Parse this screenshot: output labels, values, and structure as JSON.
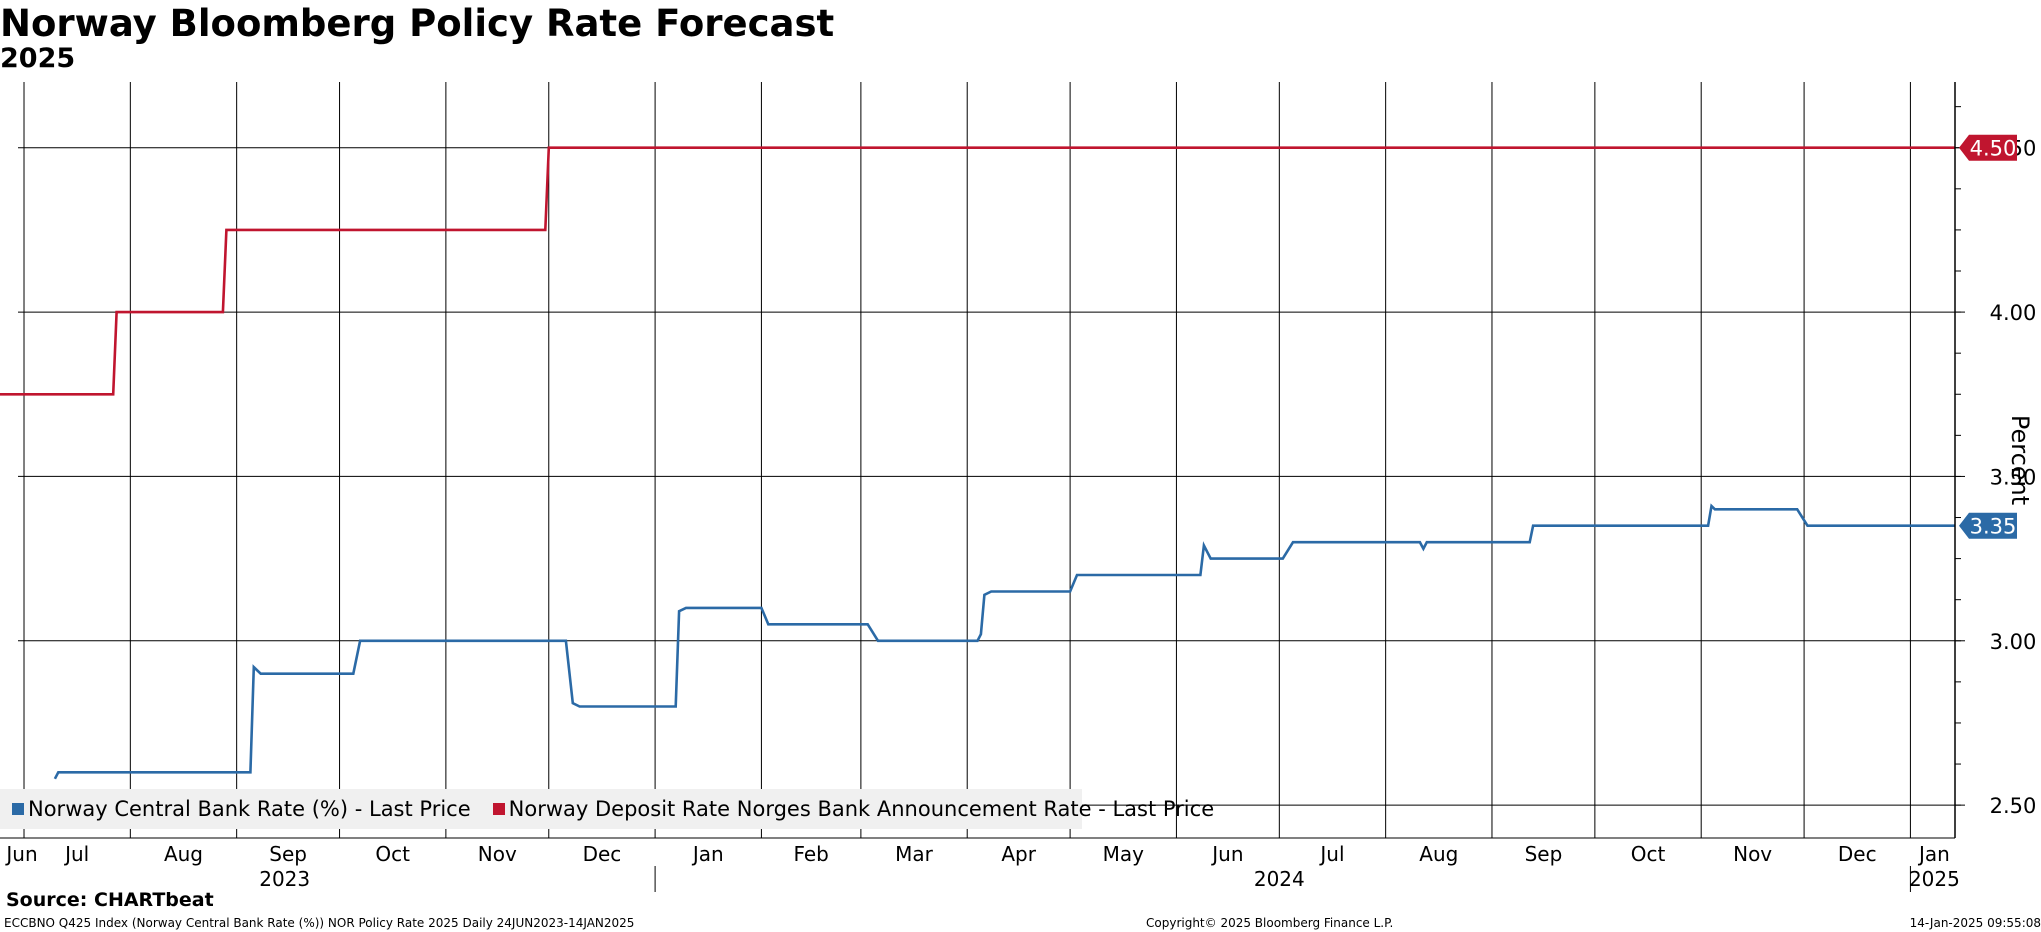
{
  "header": {
    "title": "Norway Bloomberg Policy Rate Forecast",
    "subtitle": "2025"
  },
  "colors": {
    "blue_series": "#2b6aa6",
    "red_series": "#c0152f",
    "grid": "#000000",
    "legend_bg": "#f0f0f0"
  },
  "chart_data": {
    "type": "line",
    "ylabel": "Percent",
    "ylim": [
      2.4,
      4.7
    ],
    "yticks": [
      2.5,
      3.0,
      3.5,
      4.0,
      4.5
    ],
    "ytick_labels": [
      "2.50",
      "3.00",
      "3.50",
      "4.00",
      "4.50"
    ],
    "xlim": [
      "2023-06-24",
      "2025-01-14"
    ],
    "grid": "on",
    "y_axis_side": "right",
    "legend_position": "bottom-left",
    "month_ticks": [
      {
        "label": "Jun",
        "date": "2023-06-24"
      },
      {
        "label": "Jul",
        "date": "2023-07-01"
      },
      {
        "label": "Aug",
        "date": "2023-08-01"
      },
      {
        "label": "Sep",
        "date": "2023-09-01"
      },
      {
        "label": "Oct",
        "date": "2023-10-01"
      },
      {
        "label": "Nov",
        "date": "2023-11-01"
      },
      {
        "label": "Dec",
        "date": "2023-12-01"
      },
      {
        "label": "Jan",
        "date": "2024-01-01"
      },
      {
        "label": "Feb",
        "date": "2024-02-01"
      },
      {
        "label": "Mar",
        "date": "2024-03-01"
      },
      {
        "label": "Apr",
        "date": "2024-04-01"
      },
      {
        "label": "May",
        "date": "2024-05-01"
      },
      {
        "label": "Jun",
        "date": "2024-06-01"
      },
      {
        "label": "Jul",
        "date": "2024-07-01"
      },
      {
        "label": "Aug",
        "date": "2024-08-01"
      },
      {
        "label": "Sep",
        "date": "2024-09-01"
      },
      {
        "label": "Oct",
        "date": "2024-10-01"
      },
      {
        "label": "Nov",
        "date": "2024-11-01"
      },
      {
        "label": "Dec",
        "date": "2024-12-01"
      },
      {
        "label": "Jan",
        "date": "2025-01-01"
      }
    ],
    "year_ticks": [
      {
        "label": "2023",
        "date": "2023-09-15"
      },
      {
        "label": "2024",
        "date": "2024-07-01"
      },
      {
        "label": "2025",
        "date": "2025-01-08"
      }
    ],
    "year_separators": [
      "2024-01-01",
      "2025-01-01"
    ],
    "series": [
      {
        "name": "Norway Central Bank Rate (%) - Last Price",
        "color": "#2b6aa6",
        "last_value": "3.35",
        "points": [
          [
            "2023-07-10",
            2.58
          ],
          [
            "2023-07-11",
            2.6
          ],
          [
            "2023-09-05",
            2.6
          ],
          [
            "2023-09-06",
            2.92
          ],
          [
            "2023-09-08",
            2.9
          ],
          [
            "2023-10-05",
            2.9
          ],
          [
            "2023-10-07",
            3.0
          ],
          [
            "2023-12-06",
            3.0
          ],
          [
            "2023-12-08",
            2.81
          ],
          [
            "2023-12-10",
            2.8
          ],
          [
            "2024-01-07",
            2.8
          ],
          [
            "2024-01-08",
            3.09
          ],
          [
            "2024-01-10",
            3.1
          ],
          [
            "2024-02-01",
            3.1
          ],
          [
            "2024-02-03",
            3.05
          ],
          [
            "2024-03-03",
            3.05
          ],
          [
            "2024-03-06",
            3.0
          ],
          [
            "2024-04-04",
            3.0
          ],
          [
            "2024-04-05",
            3.02
          ],
          [
            "2024-04-06",
            3.14
          ],
          [
            "2024-04-08",
            3.15
          ],
          [
            "2024-05-01",
            3.15
          ],
          [
            "2024-05-03",
            3.2
          ],
          [
            "2024-06-08",
            3.2
          ],
          [
            "2024-06-09",
            3.29
          ],
          [
            "2024-06-11",
            3.25
          ],
          [
            "2024-07-02",
            3.25
          ],
          [
            "2024-07-05",
            3.3
          ],
          [
            "2024-08-11",
            3.3
          ],
          [
            "2024-08-12",
            3.28
          ],
          [
            "2024-08-13",
            3.3
          ],
          [
            "2024-09-12",
            3.3
          ],
          [
            "2024-09-13",
            3.35
          ],
          [
            "2024-11-03",
            3.35
          ],
          [
            "2024-11-04",
            3.41
          ],
          [
            "2024-11-05",
            3.4
          ],
          [
            "2024-11-29",
            3.4
          ],
          [
            "2024-12-02",
            3.35
          ],
          [
            "2025-01-14",
            3.35
          ]
        ]
      },
      {
        "name": "Norway Deposit Rate Norges Bank Announcement Rate - Last Price",
        "color": "#c0152f",
        "last_value": "4.50",
        "points": [
          [
            "2023-06-24",
            3.75
          ],
          [
            "2023-07-27",
            3.75
          ],
          [
            "2023-07-28",
            4.0
          ],
          [
            "2023-08-28",
            4.0
          ],
          [
            "2023-08-29",
            4.25
          ],
          [
            "2023-11-30",
            4.25
          ],
          [
            "2023-12-01",
            4.5
          ],
          [
            "2025-01-14",
            4.5
          ]
        ]
      }
    ]
  },
  "legend": {
    "blue_label": "Norway Central Bank Rate (%) - Last Price",
    "red_label": "Norway Deposit Rate Norges Bank Announcement Rate - Last Price"
  },
  "footer": {
    "source": "Source: CHARTbeat",
    "left": "ECCBNO Q425 Index (Norway Central Bank Rate (%)) NOR Policy Rate 2025  Daily 24JUN2023-14JAN2025",
    "center": "Copyright© 2025 Bloomberg Finance L.P.",
    "right": "14-Jan-2025 09:55:08"
  }
}
